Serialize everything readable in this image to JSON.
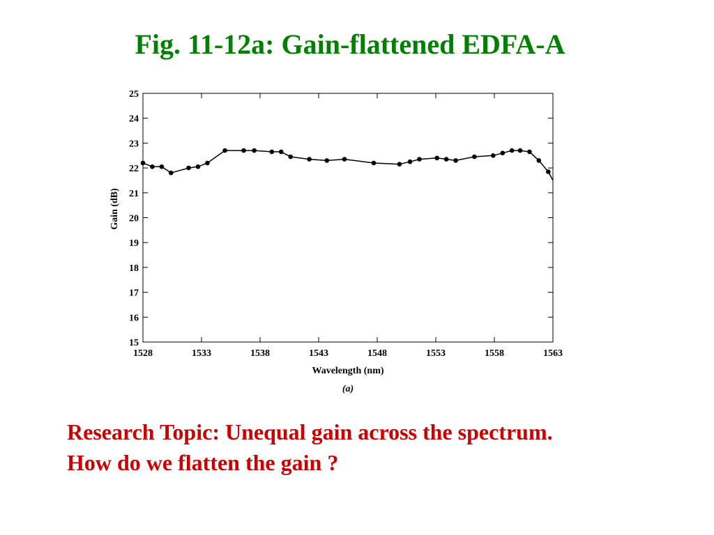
{
  "slide": {
    "title": "Fig. 11-12a: Gain-flattened EDFA-A",
    "research_line1": "Research Topic: Unequal gain across the spectrum.",
    "research_line2": "How do we flatten the gain ?"
  },
  "chart_data": {
    "type": "line",
    "title": "",
    "xlabel": "Wavelength (nm)",
    "ylabel": "Gain (dB)",
    "caption": "(a)",
    "xlim": [
      1528,
      1563
    ],
    "ylim": [
      15,
      25
    ],
    "xticks": [
      1528,
      1533,
      1538,
      1543,
      1548,
      1553,
      1558,
      1563
    ],
    "yticks": [
      15,
      16,
      17,
      18,
      19,
      20,
      21,
      22,
      23,
      24,
      25
    ],
    "grid": false,
    "marker": "circle",
    "line_color": "#000000",
    "series": [
      {
        "x": [
          1528.0,
          1528.8,
          1529.6,
          1530.4,
          1531.9,
          1532.7,
          1533.5,
          1535.0,
          1536.6,
          1537.5,
          1539.0,
          1539.8,
          1540.6,
          1542.2,
          1543.7,
          1545.2,
          1547.7,
          1549.9,
          1550.8,
          1551.6,
          1553.1,
          1553.9,
          1554.7,
          1556.3,
          1557.9,
          1558.7,
          1559.5,
          1560.2,
          1561.0,
          1561.8,
          1562.6,
          1563.0
        ],
        "y": [
          22.2,
          22.05,
          22.05,
          21.8,
          22.0,
          22.05,
          22.2,
          22.7,
          22.7,
          22.7,
          22.65,
          22.65,
          22.45,
          22.35,
          22.3,
          22.35,
          22.2,
          22.15,
          22.25,
          22.35,
          22.4,
          22.35,
          22.3,
          22.45,
          22.5,
          22.6,
          22.7,
          22.7,
          22.65,
          22.3,
          21.85,
          21.5
        ]
      }
    ]
  }
}
